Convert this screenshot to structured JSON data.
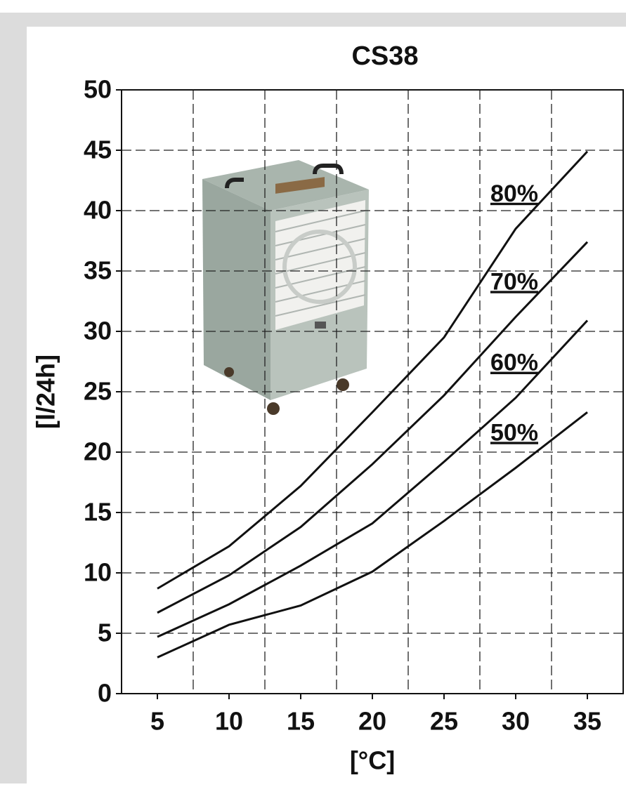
{
  "chart_data": {
    "type": "line",
    "title": "CS38",
    "x_label": "[°C]",
    "y_label": "[l/24h]",
    "x": [
      5,
      10,
      15,
      20,
      25,
      30,
      35
    ],
    "series": [
      {
        "name": "80%",
        "color": "#111111",
        "values": [
          8.7,
          12.2,
          17.2,
          23.3,
          29.5,
          38.5,
          44.9
        ]
      },
      {
        "name": "70%",
        "color": "#111111",
        "values": [
          6.7,
          9.8,
          13.8,
          19,
          24.7,
          31.2,
          37.4
        ]
      },
      {
        "name": "60%",
        "color": "#111111",
        "values": [
          4.7,
          7.4,
          10.6,
          14.1,
          19.2,
          24.5,
          30.9
        ]
      },
      {
        "name": "50%",
        "color": "#111111",
        "values": [
          3,
          5.7,
          7.3,
          10.1,
          14.3,
          18.7,
          23.3
        ]
      }
    ],
    "xlim": [
      2.5,
      37.5
    ],
    "xticks": [
      5,
      10,
      15,
      20,
      25,
      30,
      35
    ],
    "xgrid": [
      7.5,
      12.5,
      17.5,
      22.5,
      27.5,
      32.5
    ],
    "ylim": [
      0,
      50
    ],
    "yticks": [
      0,
      5,
      10,
      15,
      20,
      25,
      30,
      35,
      40,
      45,
      50
    ],
    "grid": true
  }
}
